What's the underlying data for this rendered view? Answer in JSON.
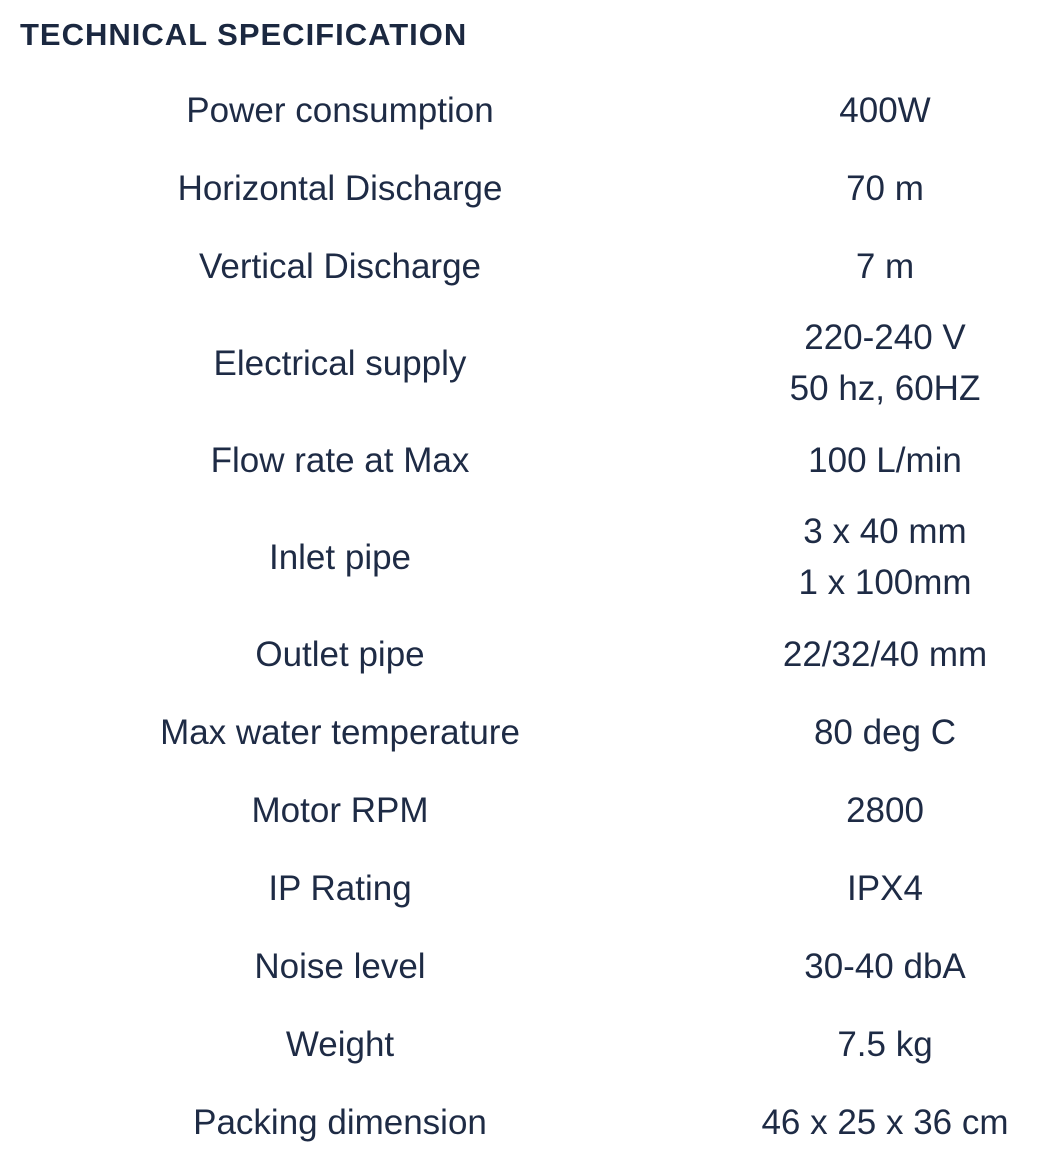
{
  "title": "TECHNICAL SPECIFICATION",
  "colors": {
    "text": "#1e2b45",
    "title": "#1b2840",
    "background": "#ffffff"
  },
  "specs": {
    "rows": [
      {
        "label": "Power consumption",
        "value": "400W"
      },
      {
        "label": "Horizontal Discharge",
        "value": "70 m"
      },
      {
        "label": "Vertical Discharge",
        "value": "7 m"
      },
      {
        "label": "Electrical supply",
        "value": "220-240 V\n50 hz, 60HZ"
      },
      {
        "label": "Flow rate at Max",
        "value": "100 L/min"
      },
      {
        "label": "Inlet pipe",
        "value": "3 x 40 mm\n1 x 100mm"
      },
      {
        "label": "Outlet pipe",
        "value": "22/32/40 mm"
      },
      {
        "label": "Max water temperature",
        "value": "80 deg C"
      },
      {
        "label": "Motor RPM",
        "value": "2800"
      },
      {
        "label": "IP Rating",
        "value": "IPX4"
      },
      {
        "label": "Noise level",
        "value": "30-40 dbA"
      },
      {
        "label": "Weight",
        "value": "7.5 kg"
      },
      {
        "label": "Packing dimension",
        "value": "46 x 25 x 36 cm"
      }
    ]
  }
}
